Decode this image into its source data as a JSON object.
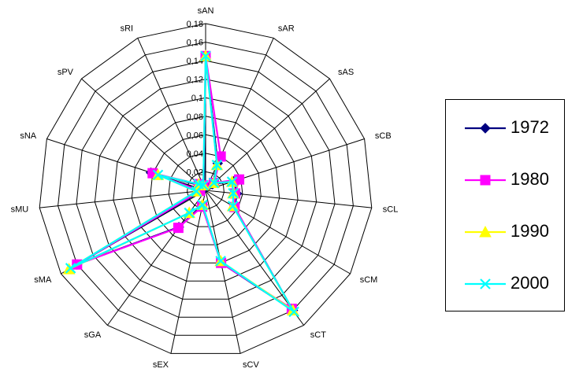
{
  "chart_data": {
    "type": "radar",
    "categories": [
      "sAN",
      "sAR",
      "sAS",
      "sCB",
      "sCL",
      "sCM",
      "sCT",
      "sCV",
      "sEX",
      "sGA",
      "sMA",
      "sMU",
      "sNA",
      "sPV",
      "sRI"
    ],
    "ticks": [
      "0",
      "0,02",
      "0,04",
      "0,06",
      "0,08",
      "0,1",
      "0,12",
      "0,14",
      "0,16",
      "0,18"
    ],
    "ylim": [
      0,
      0.18
    ],
    "legend_position": "right",
    "series": [
      {
        "name": "1972",
        "color": "#000080",
        "marker": "diamond",
        "values": [
          0.145,
          0.032,
          0.01,
          0.032,
          0.034,
          0.036,
          0.16,
          0.08,
          0.016,
          0.049,
          0.16,
          0.004,
          0.062,
          0.008,
          0.004
        ]
      },
      {
        "name": "1980",
        "color": "#FF00FF",
        "marker": "square",
        "values": [
          0.145,
          0.04,
          0.012,
          0.038,
          0.032,
          0.036,
          0.158,
          0.08,
          0.018,
          0.05,
          0.16,
          0.006,
          0.06,
          0.01,
          0.006
        ]
      },
      {
        "name": "1990",
        "color": "#FFFF00",
        "marker": "triangle",
        "values": [
          0.145,
          0.03,
          0.012,
          0.03,
          0.03,
          0.034,
          0.16,
          0.078,
          0.016,
          0.03,
          0.17,
          0.01,
          0.054,
          0.01,
          0.006
        ]
      },
      {
        "name": "2000",
        "color": "#00FFFF",
        "marker": "x",
        "values": [
          0.145,
          0.03,
          0.012,
          0.03,
          0.03,
          0.034,
          0.162,
          0.078,
          0.016,
          0.03,
          0.168,
          0.01,
          0.054,
          0.01,
          0.006
        ]
      }
    ]
  },
  "legend": {
    "items": [
      {
        "label": "1972",
        "color": "#000080",
        "marker": "diamond"
      },
      {
        "label": "1980",
        "color": "#FF00FF",
        "marker": "square"
      },
      {
        "label": "1990",
        "color": "#FFFF00",
        "marker": "triangle"
      },
      {
        "label": "2000",
        "color": "#00FFFF",
        "marker": "x"
      }
    ]
  }
}
